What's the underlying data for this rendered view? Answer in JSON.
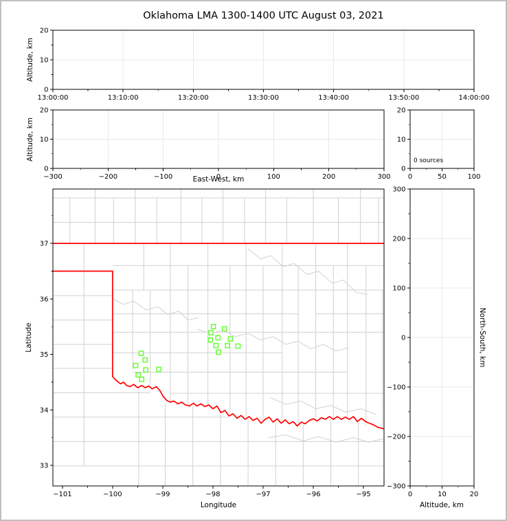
{
  "title": "Oklahoma LMA 1300-1400 UTC August 03, 2021",
  "colors": {
    "state_border": "#ff0000",
    "county_line": "#d0d0d0",
    "station": "#66ff33",
    "grid": "#e9e9e9",
    "axis": "#000000",
    "background": "#ffffff",
    "outer_border": "#bfbfbf"
  },
  "chart_data": [
    {
      "id": "time_height",
      "type": "scatter",
      "xlabel": "",
      "ylabel": "Altitude, km",
      "x_tick_labels": [
        "13:00:00",
        "13:10:00",
        "13:20:00",
        "13:30:00",
        "13:40:00",
        "13:50:00",
        "14:00:00"
      ],
      "xlim_minutes": [
        0,
        60
      ],
      "ylim": [
        0,
        20
      ],
      "y_ticks": [
        0,
        10,
        20
      ],
      "y_tick_labels": [
        "0",
        "10",
        "20"
      ],
      "points": []
    },
    {
      "id": "ew_height",
      "type": "scatter",
      "xlabel": "East-West, km",
      "ylabel": "Altitude, km",
      "xlim": [
        -300,
        300
      ],
      "x_ticks": [
        -300,
        -200,
        -100,
        0,
        100,
        200,
        300
      ],
      "x_tick_labels": [
        "−300",
        "−200",
        "−100",
        "0",
        "100",
        "200",
        "300"
      ],
      "ylim": [
        0,
        20
      ],
      "y_ticks": [
        0,
        10,
        20
      ],
      "y_tick_labels": [
        "0",
        "10",
        "20"
      ],
      "points": []
    },
    {
      "id": "source_histogram",
      "type": "line",
      "xlabel": "",
      "ylabel": "",
      "annotation": "0 sources",
      "xlim": [
        0,
        100
      ],
      "x_ticks": [
        0,
        50,
        100
      ],
      "x_tick_labels": [
        "0",
        "50",
        "100"
      ],
      "ylim": [
        0,
        20
      ],
      "y_ticks": [
        0,
        10,
        20
      ],
      "y_tick_labels": [
        "0",
        "10",
        "20"
      ],
      "points": []
    },
    {
      "id": "map",
      "type": "scatter",
      "xlabel": "Longitude",
      "ylabel": "Latitude",
      "xlim": [
        -101.19,
        -94.59
      ],
      "x_ticks": [
        -101,
        -100,
        -99,
        -98,
        -97,
        -96,
        -95
      ],
      "x_tick_labels": [
        "−101",
        "−100",
        "−99",
        "−98",
        "−97",
        "−96",
        "−95"
      ],
      "x_minor_ticks": [
        -100.5,
        -99.5,
        -98.5,
        -97.5,
        -96.5,
        -95.5
      ],
      "ylim": [
        32.63,
        37.98
      ],
      "y_ticks": [
        33,
        34,
        35,
        36,
        37
      ],
      "y_tick_labels": [
        "33",
        "34",
        "35",
        "36",
        "37"
      ],
      "y_minor_ticks": [
        33.5,
        34.5,
        35.5,
        36.5,
        37.5
      ],
      "stations": [
        [
          -97.99,
          35.5
        ],
        [
          -97.77,
          35.46
        ],
        [
          -98.04,
          35.39
        ],
        [
          -97.9,
          35.3
        ],
        [
          -98.05,
          35.26
        ],
        [
          -97.65,
          35.28
        ],
        [
          -97.94,
          35.16
        ],
        [
          -97.71,
          35.16
        ],
        [
          -97.5,
          35.15
        ],
        [
          -97.89,
          35.04
        ],
        [
          -99.43,
          35.02
        ],
        [
          -99.35,
          34.9
        ],
        [
          -99.54,
          34.8
        ],
        [
          -99.34,
          34.72
        ],
        [
          -99.08,
          34.73
        ],
        [
          -99.49,
          34.63
        ],
        [
          -99.42,
          34.55
        ]
      ],
      "state_border": [
        [
          [
            -101.19,
            37.0
          ],
          [
            -94.59,
            37.0
          ]
        ],
        [
          [
            -101.19,
            36.5
          ],
          [
            -100.0,
            36.5
          ],
          [
            -100.0,
            34.6
          ]
        ],
        [
          [
            -100.0,
            34.6
          ],
          [
            -99.95,
            34.55
          ],
          [
            -99.9,
            34.51
          ],
          [
            -99.84,
            34.47
          ],
          [
            -99.78,
            34.5
          ],
          [
            -99.72,
            34.44
          ],
          [
            -99.65,
            34.42
          ],
          [
            -99.58,
            34.46
          ],
          [
            -99.5,
            34.4
          ],
          [
            -99.42,
            34.44
          ],
          [
            -99.35,
            34.4
          ],
          [
            -99.28,
            34.43
          ],
          [
            -99.21,
            34.38
          ],
          [
            -99.13,
            34.42
          ],
          [
            -99.06,
            34.35
          ],
          [
            -98.99,
            34.24
          ],
          [
            -98.92,
            34.17
          ],
          [
            -98.85,
            34.14
          ],
          [
            -98.78,
            34.16
          ],
          [
            -98.7,
            34.11
          ],
          [
            -98.62,
            34.14
          ],
          [
            -98.55,
            34.09
          ],
          [
            -98.47,
            34.07
          ],
          [
            -98.39,
            34.12
          ],
          [
            -98.32,
            34.07
          ],
          [
            -98.24,
            34.11
          ],
          [
            -98.16,
            34.06
          ],
          [
            -98.08,
            34.09
          ],
          [
            -98.0,
            34.02
          ],
          [
            -97.92,
            34.07
          ],
          [
            -97.84,
            33.95
          ],
          [
            -97.76,
            33.99
          ],
          [
            -97.68,
            33.89
          ],
          [
            -97.6,
            33.93
          ],
          [
            -97.52,
            33.85
          ],
          [
            -97.44,
            33.9
          ],
          [
            -97.36,
            33.83
          ],
          [
            -97.28,
            33.88
          ],
          [
            -97.2,
            33.81
          ],
          [
            -97.12,
            33.85
          ],
          [
            -97.04,
            33.76
          ],
          [
            -96.96,
            33.83
          ],
          [
            -96.88,
            33.87
          ],
          [
            -96.8,
            33.78
          ],
          [
            -96.72,
            33.84
          ],
          [
            -96.64,
            33.76
          ],
          [
            -96.56,
            33.82
          ],
          [
            -96.48,
            33.75
          ],
          [
            -96.4,
            33.79
          ],
          [
            -96.32,
            33.71
          ],
          [
            -96.24,
            33.78
          ],
          [
            -96.16,
            33.75
          ],
          [
            -96.08,
            33.81
          ],
          [
            -96.0,
            33.84
          ],
          [
            -95.92,
            33.8
          ],
          [
            -95.84,
            33.86
          ],
          [
            -95.76,
            33.83
          ],
          [
            -95.68,
            33.88
          ],
          [
            -95.6,
            33.83
          ],
          [
            -95.52,
            33.88
          ],
          [
            -95.44,
            33.83
          ],
          [
            -95.36,
            33.87
          ],
          [
            -95.28,
            33.83
          ],
          [
            -95.2,
            33.88
          ],
          [
            -95.12,
            33.79
          ],
          [
            -95.04,
            33.85
          ],
          [
            -94.96,
            33.79
          ],
          [
            -94.88,
            33.76
          ],
          [
            -94.8,
            33.73
          ],
          [
            -94.72,
            33.69
          ],
          [
            -94.64,
            33.67
          ],
          [
            -94.59,
            33.66
          ]
        ]
      ],
      "county_v": [
        [
          -100.85,
          37.0,
          37.82
        ],
        [
          -100.35,
          37.0,
          37.98
        ],
        [
          -99.98,
          37.0,
          37.82
        ],
        [
          -99.55,
          37.0,
          37.98
        ],
        [
          -99.12,
          37.0,
          37.82
        ],
        [
          -98.64,
          37.0,
          37.98
        ],
        [
          -98.22,
          37.0,
          37.82
        ],
        [
          -97.8,
          37.0,
          37.98
        ],
        [
          -97.37,
          37.0,
          37.82
        ],
        [
          -96.95,
          37.0,
          37.98
        ],
        [
          -96.53,
          37.0,
          37.82
        ],
        [
          -96.0,
          37.0,
          37.98
        ],
        [
          -95.5,
          37.0,
          37.82
        ],
        [
          -95.06,
          37.0,
          37.98
        ],
        [
          -94.7,
          37.0,
          37.82
        ],
        [
          -100.57,
          33.0,
          37.0
        ],
        [
          -99.48,
          32.63,
          34.4
        ],
        [
          -98.95,
          32.63,
          34.12
        ],
        [
          -98.4,
          32.63,
          34.06
        ],
        [
          -97.85,
          32.63,
          33.92
        ],
        [
          -97.3,
          32.63,
          33.84
        ],
        [
          -96.75,
          32.63,
          33.8
        ],
        [
          -96.2,
          32.63,
          33.74
        ],
        [
          -95.65,
          32.63,
          33.84
        ],
        [
          -95.1,
          32.63,
          33.8
        ],
        [
          -99.6,
          34.73,
          36.16
        ],
        [
          -99.38,
          36.16,
          37.0
        ],
        [
          -99.25,
          34.42,
          36.16
        ],
        [
          -98.85,
          34.16,
          37.0
        ],
        [
          -98.5,
          34.1,
          36.6
        ],
        [
          -98.1,
          34.06,
          37.0
        ],
        [
          -97.66,
          33.94,
          36.6
        ],
        [
          -97.34,
          33.88,
          37.0
        ],
        [
          -97.0,
          33.8,
          36.6
        ],
        [
          -96.62,
          33.76,
          37.0
        ],
        [
          -96.3,
          33.72,
          36.6
        ],
        [
          -95.95,
          33.83,
          37.0
        ],
        [
          -95.6,
          33.85,
          36.6
        ],
        [
          -95.32,
          33.87,
          37.0
        ],
        [
          -94.95,
          33.72,
          36.6
        ],
        [
          -94.62,
          33.66,
          36.16
        ]
      ],
      "county_h": [
        [
          37.38,
          -101.19,
          -94.59
        ],
        [
          37.82,
          -101.19,
          -94.59
        ],
        [
          36.06,
          -101.19,
          -100.0
        ],
        [
          35.62,
          -101.19,
          -100.0
        ],
        [
          35.18,
          -101.19,
          -100.0
        ],
        [
          34.75,
          -101.19,
          -100.0
        ],
        [
          34.31,
          -101.19,
          -99.25
        ],
        [
          33.87,
          -101.19,
          -97.7
        ],
        [
          33.43,
          -101.19,
          -94.59
        ],
        [
          32.99,
          -101.19,
          -94.59
        ],
        [
          36.6,
          -100.0,
          -94.59
        ],
        [
          36.16,
          -100.0,
          -94.59
        ],
        [
          35.73,
          -100.0,
          -96.3
        ],
        [
          35.73,
          -95.95,
          -94.59
        ],
        [
          35.4,
          -100.0,
          -94.59
        ],
        [
          35.03,
          -100.0,
          -96.62
        ],
        [
          34.68,
          -99.6,
          -95.32
        ],
        [
          34.3,
          -98.85,
          -94.59
        ]
      ],
      "county_wiggly": [
        [
          [
            -100.0,
            36.0
          ],
          [
            -99.78,
            35.9
          ],
          [
            -99.58,
            35.96
          ],
          [
            -99.33,
            35.8
          ],
          [
            -99.1,
            35.86
          ],
          [
            -98.9,
            35.72
          ],
          [
            -98.68,
            35.78
          ],
          [
            -98.5,
            35.62
          ],
          [
            -98.3,
            35.66
          ]
        ],
        [
          [
            -98.3,
            35.45
          ],
          [
            -98.05,
            35.38
          ],
          [
            -97.8,
            35.44
          ],
          [
            -97.55,
            35.32
          ],
          [
            -97.3,
            35.38
          ],
          [
            -97.05,
            35.26
          ],
          [
            -96.8,
            35.32
          ],
          [
            -96.55,
            35.18
          ],
          [
            -96.3,
            35.24
          ],
          [
            -96.05,
            35.1
          ],
          [
            -95.8,
            35.18
          ],
          [
            -95.55,
            35.06
          ],
          [
            -95.3,
            35.12
          ]
        ],
        [
          [
            -97.3,
            36.9
          ],
          [
            -97.05,
            36.72
          ],
          [
            -96.85,
            36.78
          ],
          [
            -96.6,
            36.58
          ],
          [
            -96.38,
            36.64
          ],
          [
            -96.12,
            36.44
          ],
          [
            -95.9,
            36.5
          ],
          [
            -95.62,
            36.28
          ],
          [
            -95.4,
            36.34
          ],
          [
            -95.15,
            36.12
          ],
          [
            -94.92,
            36.08
          ]
        ],
        [
          [
            -96.85,
            34.22
          ],
          [
            -96.55,
            34.1
          ],
          [
            -96.25,
            34.16
          ],
          [
            -95.95,
            34.02
          ],
          [
            -95.65,
            34.08
          ],
          [
            -95.35,
            33.96
          ],
          [
            -95.05,
            34.02
          ],
          [
            -94.75,
            33.92
          ]
        ],
        [
          [
            -96.9,
            33.5
          ],
          [
            -96.55,
            33.55
          ],
          [
            -96.2,
            33.44
          ],
          [
            -95.9,
            33.52
          ],
          [
            -95.55,
            33.42
          ],
          [
            -95.2,
            33.5
          ],
          [
            -94.9,
            33.42
          ],
          [
            -94.6,
            33.48
          ]
        ]
      ]
    },
    {
      "id": "ns_height",
      "type": "scatter",
      "xlabel": "Altitude, km",
      "ylabel": "North-South, km",
      "xlim": [
        0,
        20
      ],
      "x_ticks": [
        0,
        10,
        20
      ],
      "x_tick_labels": [
        "0",
        "10",
        "20"
      ],
      "ylim": [
        -300,
        300
      ],
      "y_ticks": [
        300,
        200,
        100,
        0,
        -100,
        -200,
        -300
      ],
      "y_tick_labels": [
        "300",
        "200",
        "100",
        "0",
        "−100",
        "−200",
        "−300"
      ],
      "points": []
    }
  ]
}
